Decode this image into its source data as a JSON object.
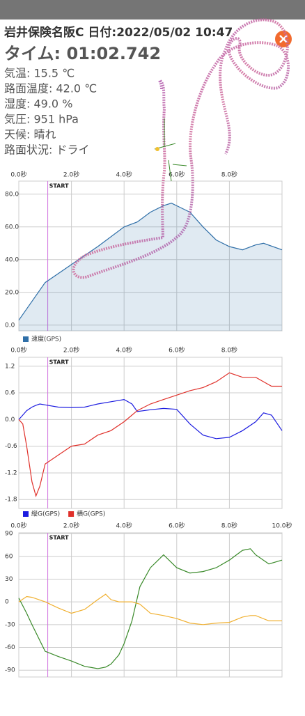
{
  "header": {
    "title": "岩井保険名阪C 日付:2022/05/02 10:47",
    "time": "タイム: 01:02.742",
    "info": [
      "気温: 15.5 ℃",
      "路面温度: 42.0 ℃",
      "湿度: 49.0 %",
      "気圧: 951 hPa",
      "天候: 晴れ",
      "路面状況: ドライ"
    ]
  },
  "chart_data": [
    {
      "type": "area",
      "xlim": [
        0,
        10
      ],
      "ylim": [
        -3.5,
        88
      ],
      "xticks": [
        {
          "value": 0,
          "label": "0.0秒"
        },
        {
          "value": 2,
          "label": "2.0秒"
        },
        {
          "value": 4,
          "label": "4.0秒"
        },
        {
          "value": 6,
          "label": "6.0秒"
        },
        {
          "value": 8,
          "label": "8.0秒"
        }
      ],
      "yticks": [
        {
          "value": 0,
          "label": "0.0"
        },
        {
          "value": 20,
          "label": "20.0"
        },
        {
          "value": 40,
          "label": "40.0"
        },
        {
          "value": 60,
          "label": "60.0"
        },
        {
          "value": 80,
          "label": "80.0"
        }
      ],
      "grid": true,
      "start_marker": {
        "x": 1.1,
        "label": "START"
      },
      "x": [
        0,
        1,
        2,
        3,
        4,
        4.5,
        5,
        5.5,
        5.8,
        6.5,
        7,
        7.5,
        8,
        8.5,
        9,
        9.3,
        10
      ],
      "series": [
        {
          "name": "速度(GPS)",
          "color": "#2f6fa8",
          "values": [
            3,
            26,
            37,
            48,
            60,
            63,
            69,
            73,
            74.5,
            69,
            60,
            52,
            48,
            46,
            49,
            50,
            46
          ]
        }
      ]
    },
    {
      "type": "line",
      "xlim": [
        0,
        10
      ],
      "ylim": [
        -2,
        1.4
      ],
      "xticks": [
        {
          "value": 0,
          "label": "0.0秒"
        },
        {
          "value": 2,
          "label": "2.0秒"
        },
        {
          "value": 4,
          "label": "4.0秒"
        },
        {
          "value": 6,
          "label": "6.0秒"
        },
        {
          "value": 8,
          "label": "8.0秒"
        }
      ],
      "yticks": [
        1.2,
        0.6,
        {
          "value": 0,
          "label": "0.0"
        },
        -0.6,
        -1.2,
        -1.8
      ],
      "grid": true,
      "start_marker": {
        "x": 1.1,
        "label": "START"
      },
      "x": [
        0,
        0.15,
        0.3,
        0.5,
        0.65,
        0.8,
        1,
        1.5,
        2,
        2.5,
        3,
        3.5,
        4,
        4.3,
        4.5,
        5,
        5.5,
        6,
        6.5,
        7,
        7.5,
        8,
        8.5,
        9,
        9.3,
        9.6,
        10
      ],
      "series": [
        {
          "name": "縦G(GPS)",
          "color": "#1c1ce0",
          "values": [
            0,
            0.1,
            0.2,
            0.28,
            0.32,
            0.35,
            0.33,
            0.28,
            0.27,
            0.28,
            0.35,
            0.4,
            0.45,
            0.35,
            0.18,
            0.22,
            0.25,
            0.23,
            -0.1,
            -0.35,
            -0.43,
            -0.4,
            -0.25,
            -0.05,
            0.15,
            0.1,
            -0.25
          ]
        },
        {
          "name": "横G(GPS)",
          "color": "#e0302a",
          "values": [
            0,
            -0.1,
            -0.6,
            -1.4,
            -1.72,
            -1.5,
            -1.0,
            -0.8,
            -0.6,
            -0.55,
            -0.35,
            -0.25,
            -0.05,
            0.1,
            0.2,
            0.35,
            0.45,
            0.55,
            0.65,
            0.72,
            0.85,
            1.05,
            0.95,
            0.95,
            0.85,
            0.75,
            0.75
          ]
        }
      ]
    },
    {
      "type": "line",
      "xlim": [
        0,
        10
      ],
      "ylim": [
        -99,
        91
      ],
      "xticks": [
        {
          "value": 0,
          "label": "0.0秒"
        },
        {
          "value": 2,
          "label": "2.0秒"
        },
        {
          "value": 4,
          "label": "4.0秒"
        },
        {
          "value": 6,
          "label": "6.0秒"
        },
        {
          "value": 8,
          "label": "8.0秒"
        },
        {
          "value": 10,
          "label": "10.0秒"
        }
      ],
      "yticks": [
        90,
        60,
        30,
        0,
        -30,
        -60,
        -90
      ],
      "grid": true,
      "start_marker": {
        "x": 1.1,
        "label": "START"
      },
      "x": [
        0,
        0.3,
        0.5,
        1,
        1.5,
        2,
        2.5,
        3,
        3.3,
        3.5,
        3.8,
        4,
        4.3,
        4.6,
        5,
        5.5,
        6,
        6.5,
        7,
        7.5,
        8,
        8.5,
        8.8,
        9,
        9.5,
        10
      ],
      "series": [
        {
          "color": "#3a8a2a",
          "values": [
            5,
            -15,
            -30,
            -65,
            -72,
            -78,
            -85,
            -88,
            -86,
            -82,
            -70,
            -55,
            -25,
            20,
            45,
            62,
            45,
            38,
            40,
            45,
            55,
            68,
            70,
            62,
            50,
            55
          ]
        },
        {
          "color": "#f0b030",
          "values": [
            0,
            7,
            6,
            0,
            -8,
            -15,
            -10,
            3,
            10,
            3,
            0,
            0,
            0,
            -3,
            -15,
            -18,
            -22,
            -28,
            -30,
            -28,
            -27,
            -20,
            -18,
            -18,
            -25,
            -25
          ]
        }
      ]
    }
  ]
}
